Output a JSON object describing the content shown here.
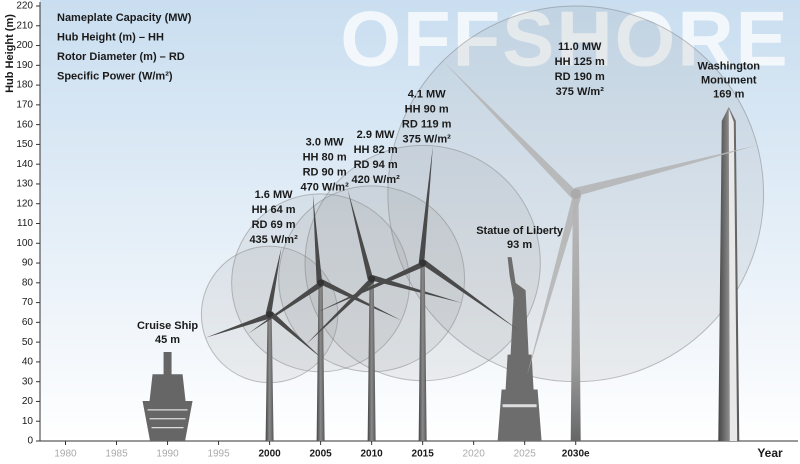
{
  "chart_data": {
    "type": "turbine",
    "watermark": "OFFSHORE",
    "ylabel": "Hub Height (m)",
    "xlabel": "Year",
    "legend_lines": [
      "Nameplate Capacity (MW)",
      "Hub Height (m) – HH",
      "Rotor Diameter (m) – RD",
      "Specific Power (W/m²)"
    ],
    "xlim": [
      1977.5,
      2051
    ],
    "xticks": [
      1980,
      1985,
      1990,
      1995,
      2000,
      2005,
      2010,
      2015,
      2020,
      2025,
      {
        "value": 2030,
        "label": "2030e"
      }
    ],
    "ylim": [
      0,
      220
    ],
    "yticks": [
      0,
      10,
      20,
      30,
      40,
      50,
      60,
      70,
      80,
      90,
      100,
      110,
      120,
      130,
      140,
      150,
      160,
      170,
      180,
      190,
      200,
      210,
      220
    ],
    "turbines": [
      {
        "x": 2000,
        "hub_height": 64,
        "rotor_diameter": 69,
        "labels": [
          "1.6 MW",
          "HH 64 m",
          "RD 69 m",
          "435 W/m²"
        ]
      },
      {
        "x": 2005,
        "hub_height": 80,
        "rotor_diameter": 90,
        "labels": [
          "3.0 MW",
          "HH 80 m",
          "RD 90 m",
          "470 W/m²"
        ]
      },
      {
        "x": 2010,
        "hub_height": 82,
        "rotor_diameter": 94,
        "labels": [
          "2.9 MW",
          "HH 82 m",
          "RD 94 m",
          "420 W/m²"
        ]
      },
      {
        "x": 2015,
        "hub_height": 90,
        "rotor_diameter": 119,
        "labels": [
          "4.1 MW",
          "HH 90 m",
          "RD 119 m",
          "375 W/m²"
        ]
      },
      {
        "x": 2030,
        "hub_height": 125,
        "rotor_diameter": 190,
        "labels": [
          "11.0 MW",
          "HH 125 m",
          "RD 190 m",
          "375 W/m²"
        ]
      }
    ],
    "references": [
      {
        "kind": "ship",
        "x": 1990,
        "height": 45,
        "name_lines": [
          "Cruise Ship"
        ],
        "height_label": "45 m"
      },
      {
        "kind": "statue",
        "x": 2024.5,
        "height": 93,
        "name_lines": [
          "Statue of Liberty"
        ],
        "height_label": "93 m"
      },
      {
        "kind": "obelisk",
        "x": 2045,
        "height": 169,
        "name_lines": [
          "Washington",
          "Monument"
        ],
        "height_label": "169 m"
      }
    ]
  }
}
